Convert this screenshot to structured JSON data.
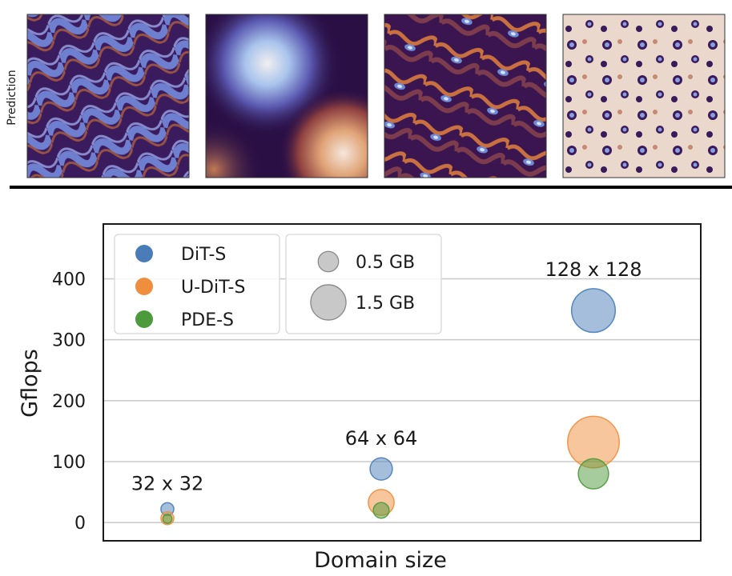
{
  "top_panel": {
    "row_label": "Prediction",
    "thumbnails": [
      "field-1",
      "field-2",
      "field-3",
      "field-4"
    ]
  },
  "chart_data": {
    "type": "scatter",
    "subtype": "bubble",
    "xlabel": "Domain size",
    "ylabel": "Gflops",
    "yticks": [
      0,
      100,
      200,
      300,
      400
    ],
    "ylim": [
      -30,
      490
    ],
    "grid": true,
    "categories": [
      "32 x 32",
      "64 x 64",
      "128 x 128"
    ],
    "series": [
      {
        "name": "DiT-S",
        "color": "#4a7db8",
        "values": [
          22,
          88,
          348
        ],
        "memory_gb": [
          0.2,
          0.6,
          2.3
        ]
      },
      {
        "name": "U-DiT-S",
        "color": "#ef8e3c",
        "values": [
          7,
          33,
          132
        ],
        "memory_gb": [
          0.2,
          0.8,
          3.2
        ]
      },
      {
        "name": "PDE-S",
        "color": "#4d9a3c",
        "values": [
          6,
          20,
          80
        ],
        "memory_gb": [
          0.1,
          0.3,
          1.1
        ]
      }
    ],
    "size_legend": [
      {
        "label": "0.5 GB",
        "gb": 0.5
      },
      {
        "label": "1.5 GB",
        "gb": 1.5
      }
    ],
    "legend_position": "top-left"
  }
}
